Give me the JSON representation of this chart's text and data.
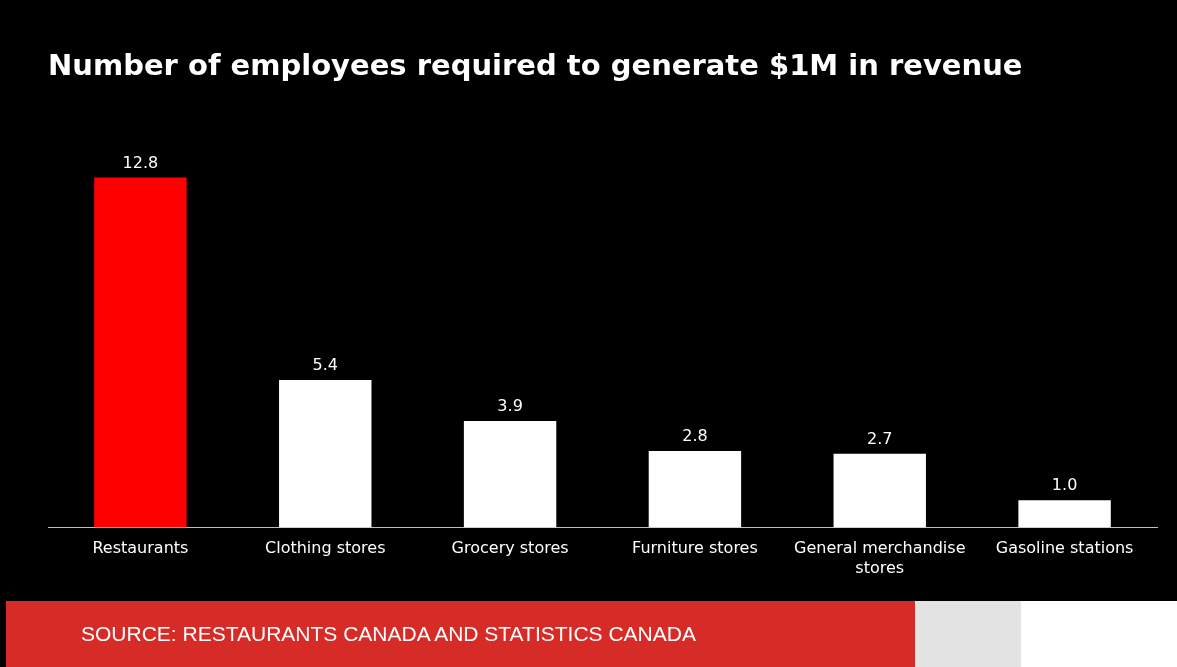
{
  "chart_data": {
    "type": "bar",
    "title": "Number of employees required to generate $1M in revenue",
    "categories": [
      "Restaurants",
      "Clothing stores",
      "Grocery stores",
      "Furniture stores",
      "General merchandise stores",
      "Gasoline stations"
    ],
    "values": [
      12.8,
      5.4,
      3.9,
      2.8,
      2.7,
      1.0
    ],
    "colors": [
      "#ff0000",
      "#ffffff",
      "#ffffff",
      "#ffffff",
      "#ffffff",
      "#ffffff"
    ],
    "value_labels": [
      "12.8",
      "5.4",
      "3.9",
      "2.8",
      "2.7",
      "1.0"
    ],
    "legend": false,
    "annotations": [
      "SOURCE: RESTAURANTS CANADA AND STATISTICS CANADA"
    ]
  }
}
